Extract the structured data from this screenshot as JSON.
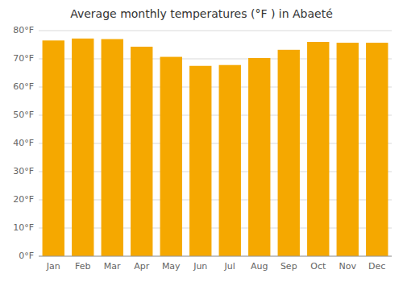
{
  "chart_data": {
    "type": "bar",
    "title": "Average monthly temperatures (°F ) in Abaeté",
    "categories": [
      "Jan",
      "Feb",
      "Mar",
      "Apr",
      "May",
      "Jun",
      "Jul",
      "Aug",
      "Sep",
      "Oct",
      "Nov",
      "Dec"
    ],
    "values": [
      76.5,
      77.2,
      77.0,
      74.3,
      70.7,
      67.5,
      67.8,
      70.3,
      73.2,
      76.0,
      75.7,
      75.7
    ],
    "color": "#F5A800",
    "ylim": [
      0,
      80
    ],
    "yticks": [
      {
        "value": 0,
        "label": "0°F"
      },
      {
        "value": 10,
        "label": "10°F"
      },
      {
        "value": 20,
        "label": "20°F"
      },
      {
        "value": 30,
        "label": "30°F"
      },
      {
        "value": 40,
        "label": "40°F"
      },
      {
        "value": 50,
        "label": "50°F"
      },
      {
        "value": 60,
        "label": "60°F"
      },
      {
        "value": 70,
        "label": "70°F"
      },
      {
        "value": 80,
        "label": "80°F"
      }
    ],
    "grid": true
  }
}
